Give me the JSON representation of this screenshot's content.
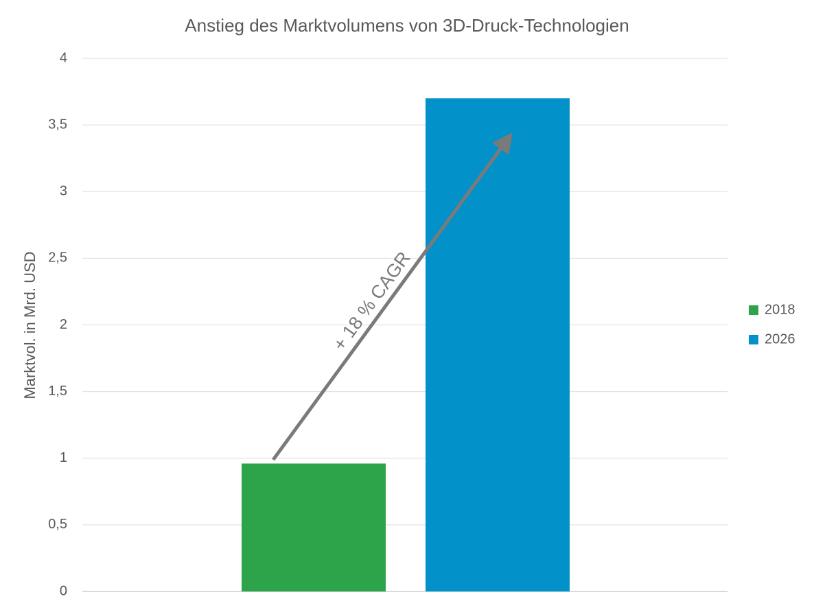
{
  "chart_data": {
    "type": "bar",
    "title": "Anstieg des Marktvolumens von 3D-Druck-Technologien",
    "y_label": "Marktvol. in Mrd. USD",
    "annotation": "+ 18 % CAGR",
    "categories": [
      null
    ],
    "series": [
      {
        "name": "2018",
        "color": "#2ea44a",
        "values": [
          0.96
        ]
      },
      {
        "name": "2026",
        "color": "#0391c9",
        "values": [
          3.7
        ]
      }
    ],
    "ylim": [
      0,
      4
    ],
    "yticks": [
      0,
      {
        "value": 0.5,
        "label": "0,5"
      },
      1,
      {
        "value": 1.5,
        "label": "1,5"
      },
      2,
      {
        "value": 2.5,
        "label": "2,5"
      },
      3,
      {
        "value": 3.5,
        "label": "3,5"
      },
      4
    ],
    "grid": true,
    "legend": "right"
  }
}
